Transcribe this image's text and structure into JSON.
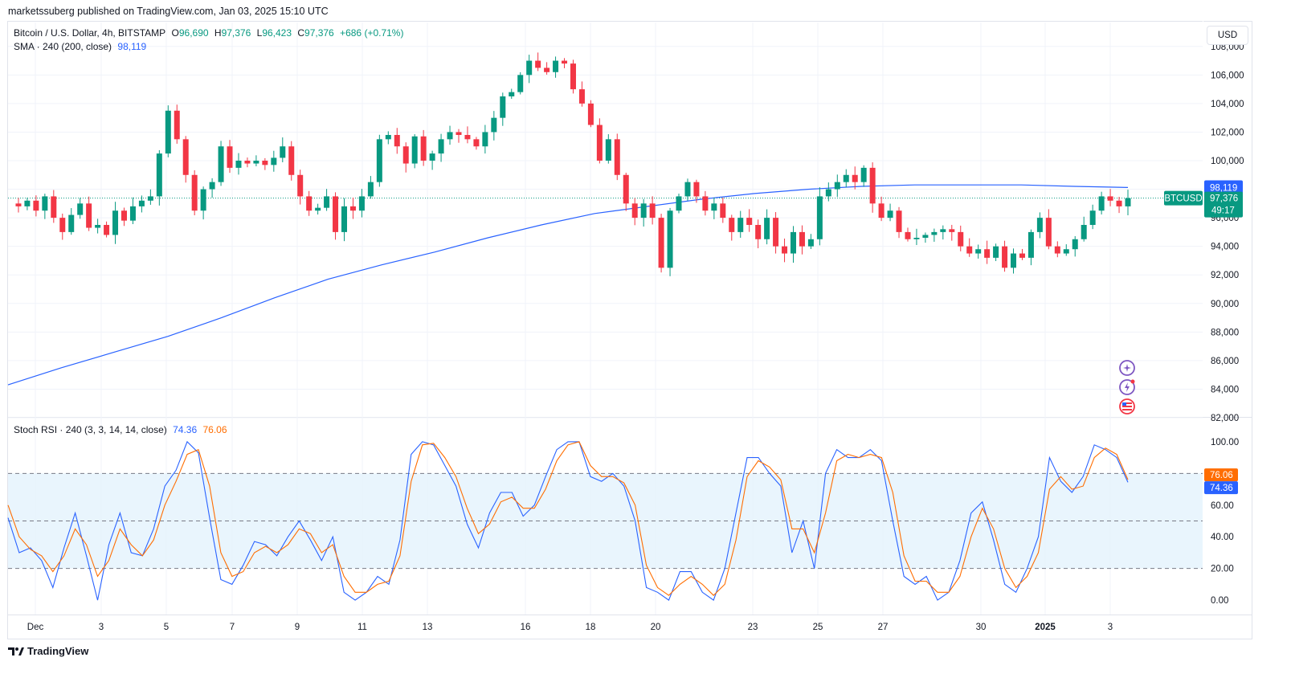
{
  "header": {
    "credit": "marketssuberg published on TradingView.com, Jan 03, 2025 15:10 UTC"
  },
  "legend": {
    "symbol": "Bitcoin / U.S. Dollar, 4h, BITSTAMP",
    "o_label": "O",
    "o_value": "96,690",
    "h_label": "H",
    "h_value": "97,376",
    "l_label": "L",
    "l_value": "96,423",
    "c_label": "C",
    "c_value": "97,376",
    "change": "+686 (+0.71%)",
    "sma_label": "SMA · 240 (200, close)",
    "sma_value": "98,119",
    "stoch_label": "Stoch RSI · 240 (3, 3, 14, 14, close)",
    "stoch_k": "74.36",
    "stoch_d": "76.06"
  },
  "currency_button": "USD",
  "footer": {
    "brand": "TradingView"
  },
  "colors": {
    "up": "#089981",
    "down": "#f23645",
    "sma": "#2962ff",
    "k": "#2962ff",
    "d": "#ff6d00",
    "band": "#e3f2fd"
  },
  "icons": [
    "plus-circle-icon",
    "lightning-icon",
    "us-flag-icon"
  ],
  "chart_data": [
    {
      "type": "candlestick",
      "title": "Bitcoin / U.S. Dollar, 4h, BITSTAMP",
      "ylim": [
        82000,
        109000
      ],
      "y_ticks": [
        "82,000",
        "84,000",
        "86,000",
        "88,000",
        "90,000",
        "92,000",
        "94,000",
        "96,000",
        "98,000",
        "100,000",
        "102,000",
        "104,000",
        "106,000",
        "108,000"
      ],
      "x_ticks": [
        "Dec",
        "3",
        "5",
        "7",
        "9",
        "11",
        "13",
        "16",
        "18",
        "20",
        "23",
        "25",
        "27",
        "30",
        "2025",
        "3"
      ],
      "last_price": "97,376",
      "last_price_tag": "BTCUSD",
      "countdown": "49:17",
      "sma_last": "98,119",
      "close_path": [
        97000,
        96800,
        97200,
        96500,
        97500,
        96000,
        95000,
        96200,
        97000,
        95300,
        95500,
        94800,
        96500,
        95800,
        96800,
        97200,
        97500,
        100500,
        103500,
        101500,
        99000,
        96500,
        98000,
        98500,
        101000,
        99500,
        100000,
        99800,
        100000,
        99700,
        100200,
        101000,
        99000,
        97500,
        96500,
        96700,
        97500,
        95000,
        96800,
        96500,
        97500,
        98500,
        101500,
        101800,
        101000,
        99800,
        101700,
        100000,
        100500,
        101500,
        102000,
        101800,
        101500,
        101000,
        102000,
        103000,
        104500,
        104800,
        106000,
        107000,
        106500,
        106200,
        107000,
        106800,
        105000,
        104000,
        102500,
        100000,
        101500,
        99000,
        97000,
        96000,
        97000,
        96000,
        92500,
        96500,
        97500,
        98500,
        97500,
        96500,
        97000,
        96000,
        95000,
        96000,
        95500,
        94500,
        96000,
        94000,
        93500,
        95000,
        94000,
        94500,
        97500,
        98000,
        98500,
        99000,
        98500,
        99500,
        97000,
        96000,
        96500,
        95000,
        94500,
        94600,
        94800,
        95000,
        95200,
        95000,
        94000,
        93500,
        93800,
        93200,
        94000,
        92500,
        93500,
        93200,
        95000,
        96000,
        94000,
        93500,
        93800,
        94500,
        95500,
        96500,
        97500,
        97200,
        96800,
        97376
      ],
      "sma_path": [
        84300,
        85500,
        86600,
        87700,
        89000,
        90400,
        91700,
        92700,
        93600,
        94600,
        95500,
        96300,
        96800,
        97300,
        97700,
        98000,
        98200,
        98300,
        98300,
        98300,
        98200,
        98119
      ],
      "overlay": "SMA 200"
    },
    {
      "type": "line",
      "title": "Stoch RSI · 240 (3, 3, 14, 14, close)",
      "ylim": [
        -5,
        105
      ],
      "y_ticks": [
        "0.00",
        "20.00",
        "40.00",
        "60.00",
        "80.00",
        "100.00"
      ],
      "levels": [
        20,
        50,
        80
      ],
      "series": [
        {
          "name": "K",
          "last": "74.36",
          "values": [
            52,
            30,
            33,
            25,
            8,
            33,
            55,
            28,
            0,
            35,
            55,
            30,
            28,
            45,
            72,
            82,
            100,
            93,
            52,
            13,
            10,
            22,
            37,
            35,
            28,
            40,
            50,
            38,
            25,
            40,
            5,
            0,
            5,
            15,
            10,
            38,
            92,
            100,
            98,
            85,
            72,
            48,
            33,
            55,
            68,
            68,
            53,
            60,
            78,
            95,
            100,
            100,
            78,
            75,
            80,
            72,
            50,
            8,
            5,
            0,
            18,
            18,
            5,
            0,
            20,
            55,
            90,
            90,
            80,
            72,
            30,
            50,
            20,
            80,
            95,
            90,
            90,
            95,
            88,
            50,
            15,
            10,
            15,
            0,
            5,
            25,
            55,
            62,
            38,
            10,
            5,
            20,
            40,
            90,
            75,
            68,
            78,
            98,
            95,
            90,
            74.36
          ]
        },
        {
          "name": "D",
          "last": "76.06",
          "values": [
            60,
            40,
            32,
            28,
            18,
            28,
            45,
            35,
            15,
            25,
            45,
            35,
            28,
            38,
            60,
            75,
            92,
            95,
            72,
            30,
            15,
            18,
            30,
            34,
            30,
            35,
            45,
            42,
            30,
            35,
            15,
            5,
            5,
            10,
            12,
            28,
            75,
            98,
            99,
            90,
            78,
            58,
            42,
            48,
            62,
            65,
            58,
            58,
            70,
            88,
            98,
            100,
            85,
            78,
            78,
            74,
            60,
            22,
            8,
            3,
            10,
            15,
            10,
            3,
            10,
            38,
            78,
            88,
            84,
            76,
            45,
            45,
            30,
            55,
            88,
            92,
            90,
            92,
            90,
            68,
            28,
            12,
            12,
            5,
            5,
            15,
            40,
            58,
            45,
            20,
            8,
            15,
            30,
            70,
            78,
            70,
            72,
            90,
            96,
            92,
            76.06
          ]
        }
      ]
    }
  ]
}
